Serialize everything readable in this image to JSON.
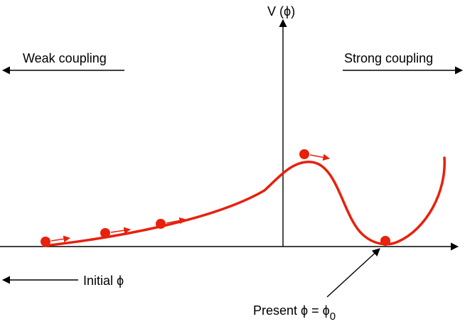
{
  "labels": {
    "y_axis": "V (ϕ)",
    "weak": "Weak coupling",
    "strong": "Strong coupling",
    "initial": "Initial ϕ",
    "present_prefix": "Present ϕ = ϕ",
    "present_sub": "0"
  },
  "colors": {
    "curve": "#e8200c",
    "axis": "#000000"
  }
}
